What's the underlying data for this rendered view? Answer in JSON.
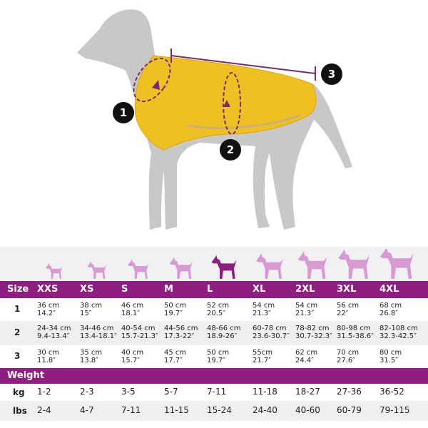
{
  "markers": [
    "1",
    "2",
    "3"
  ],
  "table": {
    "size_label": "Size",
    "sizes": [
      "XXS",
      "XS",
      "S",
      "M",
      "L",
      "XL",
      "2XL",
      "3XL",
      "4XL"
    ],
    "rows": [
      {
        "label": "1",
        "cells": [
          [
            "36 cm",
            "14.2″"
          ],
          [
            "38 cm",
            "15″"
          ],
          [
            "46 cm",
            "18.1″"
          ],
          [
            "50 cm",
            "19.7″"
          ],
          [
            "52 cm",
            "20.5″"
          ],
          [
            "54 cm",
            "21.3″"
          ],
          [
            "54 cm",
            "21.3″"
          ],
          [
            "56 cm",
            "22″"
          ],
          [
            "68 cm",
            "26.8″"
          ]
        ]
      },
      {
        "label": "2",
        "cells": [
          [
            "24-34 cm",
            "9.4-13.4″"
          ],
          [
            "34-46 cm",
            "13.4-18.1″"
          ],
          [
            "40-54 cm",
            "15.7-21.3″"
          ],
          [
            "44-56 cm",
            "17.3-22″"
          ],
          [
            "48-66 cm",
            "18.9-26″"
          ],
          [
            "60-78 cm",
            "23.6-30.7″"
          ],
          [
            "78-82 cm",
            "30.7-32.3″"
          ],
          [
            "80-98 cm",
            "31.5-38.6″"
          ],
          [
            "82-108 cm",
            "32.3-42.5″"
          ]
        ]
      },
      {
        "label": "3",
        "cells": [
          [
            "30 cm",
            "11.8″"
          ],
          [
            "35 cm",
            "13.8″"
          ],
          [
            "40 cm",
            "15.7″"
          ],
          [
            "45 cm",
            "17.7″"
          ],
          [
            "50 cm",
            "19.7″"
          ],
          [
            "55cm",
            "21.7″"
          ],
          [
            "62 cm",
            "24.4″"
          ],
          [
            "70 cm",
            "27.6″"
          ],
          [
            "80 cm",
            "31.5″"
          ]
        ]
      }
    ],
    "weight_label": "Weight",
    "weight_rows": [
      {
        "label": "kg",
        "cells": [
          "1-2",
          "2-3",
          "3-5",
          "5-7",
          "7-11",
          "11-18",
          "18-27",
          "27-36",
          "36-52"
        ]
      },
      {
        "label": "lbs",
        "cells": [
          "2-4",
          "4-7",
          "7-11",
          "11-15",
          "15-24",
          "24-40",
          "40-60",
          "60-79",
          "79-115"
        ]
      }
    ]
  }
}
